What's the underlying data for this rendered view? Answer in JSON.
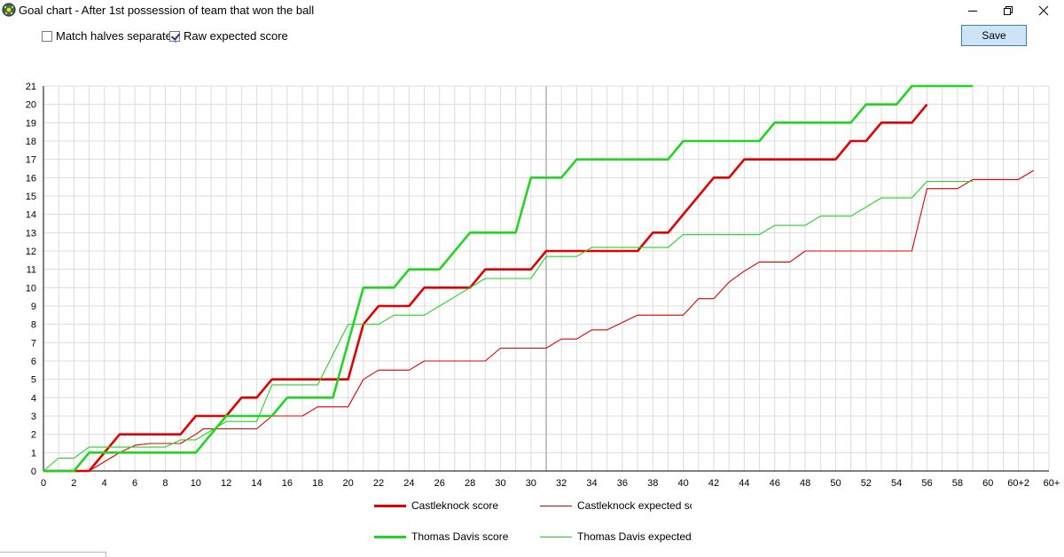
{
  "window": {
    "title": "Goal chart - After 1st possession of team that won the ball",
    "icon": "soccer-ball-icon"
  },
  "options": {
    "halves_label": "Match halves separately",
    "halves_checked": false,
    "raw_label": "Raw expected score",
    "raw_checked": true
  },
  "toolbar": {
    "save_label": "Save"
  },
  "chart_data": {
    "type": "line",
    "title": "",
    "xlabel": "",
    "ylabel": "",
    "ylim": [
      0,
      21
    ],
    "grid": true,
    "legend_position": "bottom",
    "x_tick_labels": [
      "0",
      "2",
      "4",
      "6",
      "8",
      "10",
      "12",
      "14",
      "16",
      "18",
      "20",
      "22",
      "24",
      "26",
      "28",
      "30",
      "30",
      "32",
      "34",
      "36",
      "38",
      "40",
      "42",
      "44",
      "46",
      "48",
      "50",
      "52",
      "54",
      "56",
      "58",
      "60",
      "60+2",
      "60+"
    ],
    "y_ticks": [
      0,
      1,
      2,
      3,
      4,
      5,
      6,
      7,
      8,
      9,
      10,
      11,
      12,
      13,
      14,
      15,
      16,
      17,
      18,
      19,
      20,
      21
    ],
    "series": [
      {
        "name": "Castleknock score",
        "color": "#e30000",
        "style": "thick",
        "points": [
          [
            0,
            0
          ],
          [
            3,
            0
          ],
          [
            5,
            2
          ],
          [
            9,
            2
          ],
          [
            10,
            3
          ],
          [
            12,
            3
          ],
          [
            13,
            4
          ],
          [
            14,
            4
          ],
          [
            15,
            5
          ],
          [
            20,
            5
          ],
          [
            21,
            8
          ],
          [
            22,
            9
          ],
          [
            24,
            9
          ],
          [
            25,
            10
          ],
          [
            28,
            10
          ],
          [
            29,
            11
          ],
          [
            32,
            11
          ],
          [
            33,
            12
          ],
          [
            39,
            12
          ],
          [
            40,
            13
          ],
          [
            41,
            13
          ],
          [
            44,
            16
          ],
          [
            45,
            16
          ],
          [
            46,
            17
          ],
          [
            52,
            17
          ],
          [
            53,
            18
          ],
          [
            54,
            18
          ],
          [
            55,
            19
          ],
          [
            57,
            19
          ],
          [
            58,
            20
          ]
        ]
      },
      {
        "name": "Castleknock expected scor",
        "color": "#e30000",
        "style": "thin",
        "points": [
          [
            0,
            0
          ],
          [
            3,
            0
          ],
          [
            5,
            1
          ],
          [
            6,
            1.4
          ],
          [
            7,
            1.5
          ],
          [
            9,
            1.5
          ],
          [
            10,
            2
          ],
          [
            10.5,
            2.3
          ],
          [
            11,
            2.3
          ],
          [
            14,
            2.3
          ],
          [
            15,
            3
          ],
          [
            17,
            3
          ],
          [
            18,
            3.5
          ],
          [
            20,
            3.5
          ],
          [
            21,
            5
          ],
          [
            22,
            5.5
          ],
          [
            24,
            5.5
          ],
          [
            25,
            6
          ],
          [
            29,
            6
          ],
          [
            30,
            6.7
          ],
          [
            33,
            6.7
          ],
          [
            34,
            7.2
          ],
          [
            35,
            7.2
          ],
          [
            36,
            7.7
          ],
          [
            37,
            7.7
          ],
          [
            39,
            8.5
          ],
          [
            42,
            8.5
          ],
          [
            43,
            9.4
          ],
          [
            44,
            9.4
          ],
          [
            45,
            10.3
          ],
          [
            46,
            10.9
          ],
          [
            47,
            11.4
          ],
          [
            49,
            11.4
          ],
          [
            50,
            12
          ],
          [
            57,
            12
          ],
          [
            58,
            15.4
          ],
          [
            60,
            15.4
          ],
          [
            61,
            15.9
          ],
          [
            64,
            15.9
          ],
          [
            65,
            16.4
          ]
        ]
      },
      {
        "name": "Thomas Davis score",
        "color": "#22d522",
        "style": "thick",
        "points": [
          [
            0,
            0
          ],
          [
            2,
            0
          ],
          [
            3,
            1
          ],
          [
            10,
            1
          ],
          [
            12,
            3
          ],
          [
            15,
            3
          ],
          [
            16,
            4
          ],
          [
            19,
            4
          ],
          [
            21,
            10
          ],
          [
            23,
            10
          ],
          [
            24,
            11
          ],
          [
            26,
            11
          ],
          [
            28,
            13
          ],
          [
            31,
            13
          ],
          [
            32,
            16
          ],
          [
            34,
            16
          ],
          [
            35,
            17
          ],
          [
            41,
            17
          ],
          [
            42,
            18
          ],
          [
            47,
            18
          ],
          [
            48,
            19
          ],
          [
            53,
            19
          ],
          [
            54,
            20
          ],
          [
            56,
            20
          ],
          [
            57,
            21
          ],
          [
            61,
            21
          ]
        ]
      },
      {
        "name": "Thomas Davis expected sc",
        "color": "#22d522",
        "style": "thin",
        "points": [
          [
            0,
            0
          ],
          [
            1,
            0.7
          ],
          [
            2,
            0.7
          ],
          [
            3,
            1.3
          ],
          [
            5,
            1.3
          ],
          [
            8,
            1.3
          ],
          [
            9,
            1.7
          ],
          [
            10,
            1.7
          ],
          [
            12,
            2.7
          ],
          [
            14,
            2.7
          ],
          [
            15,
            4.7
          ],
          [
            18,
            4.7
          ],
          [
            20,
            8
          ],
          [
            22,
            8
          ],
          [
            23,
            8.5
          ],
          [
            25,
            8.5
          ],
          [
            26,
            9
          ],
          [
            28,
            10
          ],
          [
            29,
            10.5
          ],
          [
            32,
            10.5
          ],
          [
            33,
            11.7
          ],
          [
            35,
            11.7
          ],
          [
            36,
            12.2
          ],
          [
            41,
            12.2
          ],
          [
            42,
            12.9
          ],
          [
            47,
            12.9
          ],
          [
            48,
            13.4
          ],
          [
            50,
            13.4
          ],
          [
            51,
            13.9
          ],
          [
            53,
            13.9
          ],
          [
            55,
            14.9
          ],
          [
            57,
            14.9
          ],
          [
            58,
            15.8
          ],
          [
            60,
            15.8
          ],
          [
            61,
            15.8
          ]
        ]
      }
    ]
  }
}
